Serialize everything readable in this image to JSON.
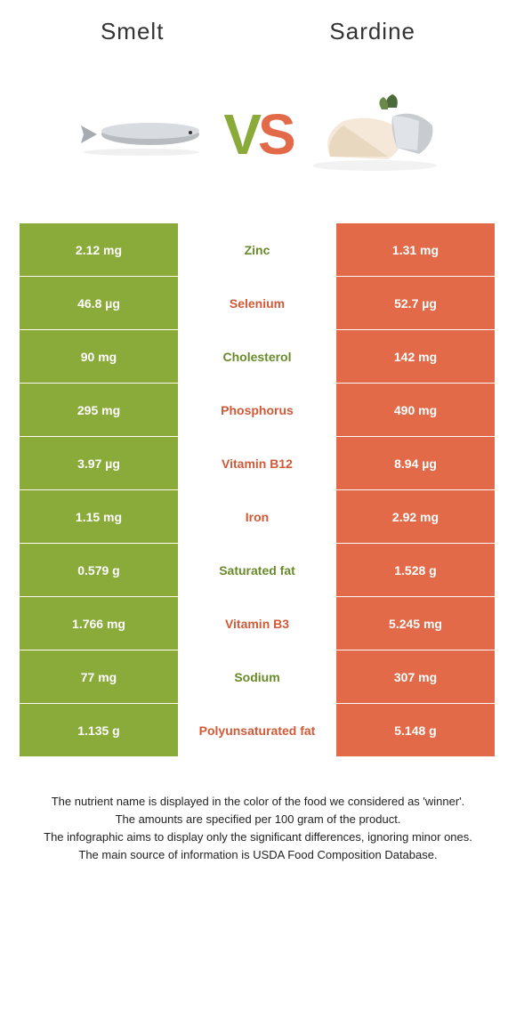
{
  "header": {
    "left": "Smelt",
    "right": "Sardine"
  },
  "vs": {
    "v": "V",
    "s": "S"
  },
  "colors": {
    "green": "#8aab3a",
    "orange": "#e26a48",
    "green_text": "#6a8a2a",
    "orange_text": "#d05a38"
  },
  "rows": [
    {
      "left": "2.12 mg",
      "label": "Zinc",
      "right": "1.31 mg",
      "winner": "green"
    },
    {
      "left": "46.8 µg",
      "label": "Selenium",
      "right": "52.7 µg",
      "winner": "orange"
    },
    {
      "left": "90 mg",
      "label": "Cholesterol",
      "right": "142 mg",
      "winner": "green"
    },
    {
      "left": "295 mg",
      "label": "Phosphorus",
      "right": "490 mg",
      "winner": "orange"
    },
    {
      "left": "3.97 µg",
      "label": "Vitamin B12",
      "right": "8.94 µg",
      "winner": "orange"
    },
    {
      "left": "1.15 mg",
      "label": "Iron",
      "right": "2.92 mg",
      "winner": "orange"
    },
    {
      "left": "0.579 g",
      "label": "Saturated fat",
      "right": "1.528 g",
      "winner": "green"
    },
    {
      "left": "1.766 mg",
      "label": "Vitamin B3",
      "right": "5.245 mg",
      "winner": "orange"
    },
    {
      "left": "77 mg",
      "label": "Sodium",
      "right": "307 mg",
      "winner": "green"
    },
    {
      "left": "1.135 g",
      "label": "Polyunsaturated fat",
      "right": "5.148 g",
      "winner": "orange"
    }
  ],
  "footer": {
    "line1": "The nutrient name is displayed in the color of the food we considered as 'winner'.",
    "line2": "The amounts are specified per 100 gram of the product.",
    "line3": "The infographic aims to display only the significant differences, ignoring minor ones.",
    "line4": "The main source of information is USDA Food Composition Database."
  }
}
